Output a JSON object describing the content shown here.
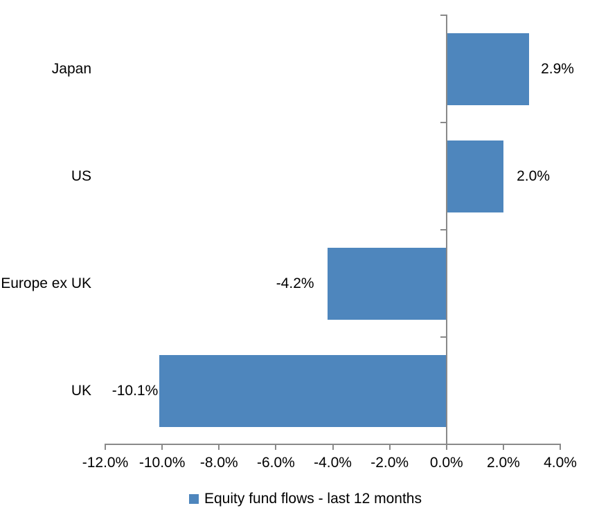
{
  "chart_data": {
    "type": "bar",
    "orientation": "horizontal",
    "title": "",
    "xlabel": "",
    "ylabel": "",
    "categories": [
      "Japan",
      "US",
      "Europe ex UK",
      "UK"
    ],
    "values": [
      2.9,
      2.0,
      -4.2,
      -10.1
    ],
    "value_labels": [
      "2.9%",
      "2.0%",
      "-4.2%",
      "-10.1%"
    ],
    "series_name": "Equity fund flows - last 12 months",
    "xlim": [
      -12,
      4
    ],
    "x_tick_step": 2,
    "x_ticks": [
      "-12.0%",
      "-10.0%",
      "-8.0%",
      "-6.0%",
      "-4.0%",
      "-2.0%",
      "0.0%",
      "2.0%",
      "4.0%"
    ],
    "grid": false,
    "legend": {
      "label": "Equity fund flows - last 12 months",
      "position": "bottom"
    },
    "colors": {
      "bar": "#4E86BD",
      "axis": "#898989",
      "text": "#000000",
      "background": "#FFFFFF"
    }
  }
}
